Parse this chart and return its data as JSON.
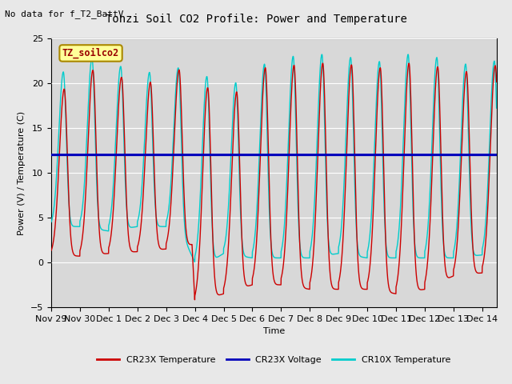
{
  "title": "Tonzi Soil CO2 Profile: Power and Temperature",
  "subtitle": "No data for f_T2_BattV",
  "ylabel": "Power (V) / Temperature (C)",
  "xlabel": "Time",
  "ylim": [
    -5,
    25
  ],
  "yticks": [
    -5,
    0,
    5,
    10,
    15,
    20,
    25
  ],
  "background_color": "#e8e8e8",
  "plot_bg_color": "#d8d8d8",
  "inset_label": "TZ_soilco2",
  "voltage_value": 12.0,
  "xtick_labels": [
    "Nov 29",
    "Nov 30",
    "Dec 1",
    "Dec 2",
    "Dec 3",
    "Dec 4",
    "Dec 5",
    "Dec 6",
    "Dec 7",
    "Dec 8",
    "Dec 9",
    "Dec 10",
    "Dec 11",
    "Dec 12",
    "Dec 13",
    "Dec 14"
  ],
  "cr23x_color": "#cc0000",
  "voltage_color": "#0000bb",
  "cr10x_color": "#00cccc",
  "line_width": 1.0
}
